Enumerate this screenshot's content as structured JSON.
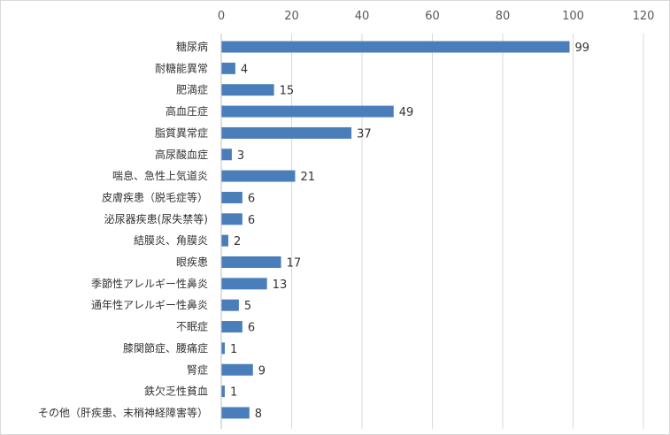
{
  "chart_data": {
    "type": "bar",
    "orientation": "horizontal",
    "categories": [
      "糖尿病",
      "耐糖能異常",
      "肥満症",
      "高血圧症",
      "脂質異常症",
      "高尿酸血症",
      "喘息、急性上気道炎",
      "皮膚疾患（脱毛症等）",
      "泌尿器疾患(尿失禁等)",
      "結膜炎、角膜炎",
      "眼疾患",
      "季節性アレルギー性鼻炎",
      "通年性アレルギー性鼻炎",
      "不眠症",
      "膝関節症、腰痛症",
      "腎症",
      "鉄欠乏性貧血",
      "その他（肝疾患、末梢神経障害等）"
    ],
    "values": [
      99,
      4,
      15,
      49,
      37,
      3,
      21,
      6,
      6,
      2,
      17,
      13,
      5,
      6,
      1,
      9,
      1,
      8
    ],
    "xlim": [
      0,
      120
    ],
    "xticks": [
      0,
      20,
      40,
      60,
      80,
      100,
      120
    ],
    "axis_position": "top",
    "gridlines": true,
    "legend": "none",
    "bar_color": "#4a7ebb"
  }
}
